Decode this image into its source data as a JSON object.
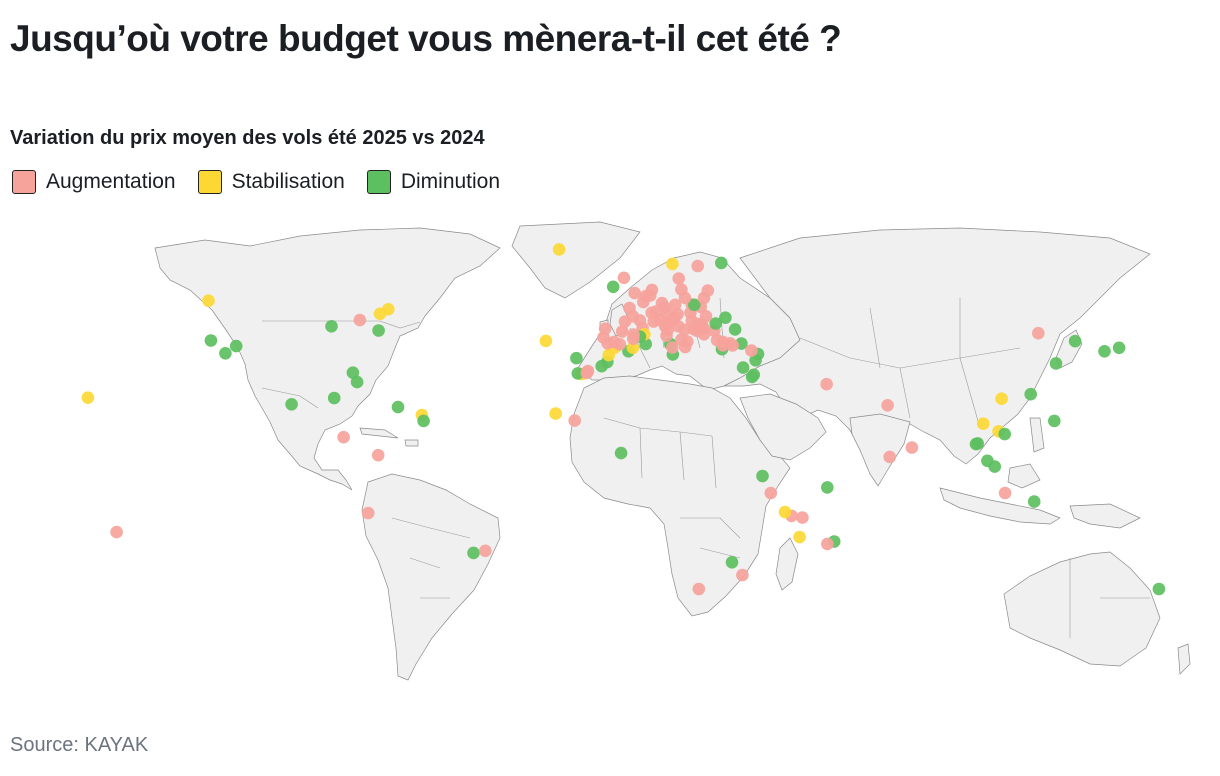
{
  "title": "Jusqu’où votre budget vous mènera-t-il cet été ?",
  "subtitle": "Variation du prix moyen des vols été 2025 vs 2024",
  "legend": [
    {
      "label": "Augmentation",
      "color": "#f6a39c"
    },
    {
      "label": "Stabilisation",
      "color": "#fdd835"
    },
    {
      "label": "Diminution",
      "color": "#5cbf60"
    }
  ],
  "source": "Source: KAYAK",
  "map": {
    "land_color": "#f0f0f0",
    "border_color": "#9a9a9a",
    "destinations": [
      {
        "name": "Honolulu",
        "lat": 21.3,
        "lon": -157.9,
        "change": "Stabilisation"
      },
      {
        "name": "Papeete",
        "lat": -17.5,
        "lon": -149.6,
        "change": "Augmentation"
      },
      {
        "name": "Vancouver",
        "lat": 49.3,
        "lon": -123.1,
        "change": "Stabilisation"
      },
      {
        "name": "San Francisco",
        "lat": 37.8,
        "lon": -122.4,
        "change": "Diminution"
      },
      {
        "name": "Los Angeles",
        "lat": 34.1,
        "lon": -118.2,
        "change": "Diminution"
      },
      {
        "name": "Las Vegas",
        "lat": 36.2,
        "lon": -115.1,
        "change": "Diminution"
      },
      {
        "name": "Chicago",
        "lat": 41.9,
        "lon": -87.6,
        "change": "Diminution"
      },
      {
        "name": "Toronto",
        "lat": 43.7,
        "lon": -79.4,
        "change": "Augmentation"
      },
      {
        "name": "Montréal",
        "lat": 45.5,
        "lon": -73.6,
        "change": "Stabilisation"
      },
      {
        "name": "Québec",
        "lat": 46.8,
        "lon": -71.2,
        "change": "Stabilisation"
      },
      {
        "name": "New York",
        "lat": 40.7,
        "lon": -74.0,
        "change": "Diminution"
      },
      {
        "name": "Orlando",
        "lat": 28.5,
        "lon": -81.4,
        "change": "Diminution"
      },
      {
        "name": "Miami",
        "lat": 25.8,
        "lon": -80.2,
        "change": "Diminution"
      },
      {
        "name": "Mexico",
        "lat": 19.4,
        "lon": -99.1,
        "change": "Diminution"
      },
      {
        "name": "Cancún",
        "lat": 21.2,
        "lon": -86.8,
        "change": "Diminution"
      },
      {
        "name": "Punta Cana",
        "lat": 18.6,
        "lon": -68.4,
        "change": "Diminution"
      },
      {
        "name": "Pointe-à-Pitre",
        "lat": 16.3,
        "lon": -61.5,
        "change": "Stabilisation"
      },
      {
        "name": "Fort-de-France",
        "lat": 14.6,
        "lon": -61.0,
        "change": "Diminution"
      },
      {
        "name": "San José",
        "lat": 9.9,
        "lon": -84.1,
        "change": "Augmentation"
      },
      {
        "name": "Bogotá",
        "lat": 4.7,
        "lon": -74.1,
        "change": "Augmentation"
      },
      {
        "name": "Lima",
        "lat": -12.0,
        "lon": -77.0,
        "change": "Augmentation"
      },
      {
        "name": "São Paulo",
        "lat": -23.5,
        "lon": -46.6,
        "change": "Diminution"
      },
      {
        "name": "Rio de Janeiro",
        "lat": -22.9,
        "lon": -43.2,
        "change": "Augmentation"
      },
      {
        "name": "Reykjavik",
        "lat": 64.1,
        "lon": -21.9,
        "change": "Stabilisation"
      },
      {
        "name": "Ponta Delgada",
        "lat": 37.7,
        "lon": -25.7,
        "change": "Stabilisation"
      },
      {
        "name": "Funchal",
        "lat": 32.7,
        "lon": -16.9,
        "change": "Diminution"
      },
      {
        "name": "Las Palmas",
        "lat": 28.1,
        "lon": -15.4,
        "change": "Stabilisation"
      },
      {
        "name": "Tenerife",
        "lat": 28.3,
        "lon": -16.5,
        "change": "Diminution"
      },
      {
        "name": "Fuerteventura",
        "lat": 28.4,
        "lon": -13.9,
        "change": "Augmentation"
      },
      {
        "name": "Lanzarote",
        "lat": 29.0,
        "lon": -13.6,
        "change": "Augmentation"
      },
      {
        "name": "Sal",
        "lat": 16.7,
        "lon": -22.9,
        "change": "Stabilisation"
      },
      {
        "name": "Dakar",
        "lat": 14.7,
        "lon": -17.4,
        "change": "Augmentation"
      },
      {
        "name": "Abidjan",
        "lat": 5.3,
        "lon": -4.0,
        "change": "Diminution"
      },
      {
        "name": "Marrakech",
        "lat": 31.6,
        "lon": -8.0,
        "change": "Diminution"
      },
      {
        "name": "Agadir",
        "lat": 30.4,
        "lon": -9.6,
        "change": "Diminution"
      },
      {
        "name": "Casablanca",
        "lat": 33.6,
        "lon": -7.6,
        "change": "Stabilisation"
      },
      {
        "name": "Tanger",
        "lat": 35.8,
        "lon": -5.8,
        "change": "Stabilisation"
      },
      {
        "name": "Oujda",
        "lat": 34.7,
        "lon": -1.9,
        "change": "Diminution"
      },
      {
        "name": "Alger",
        "lat": 36.8,
        "lon": 3.1,
        "change": "Diminution"
      },
      {
        "name": "Oran",
        "lat": 35.7,
        "lon": -0.6,
        "change": "Stabilisation"
      },
      {
        "name": "Tunis",
        "lat": 36.8,
        "lon": 10.2,
        "change": "Diminution"
      },
      {
        "name": "Djerba",
        "lat": 33.8,
        "lon": 10.9,
        "change": "Diminution"
      },
      {
        "name": "Monastir",
        "lat": 35.8,
        "lon": 10.8,
        "change": "Augmentation"
      },
      {
        "name": "Le Caire",
        "lat": 30.0,
        "lon": 31.2,
        "change": "Diminution"
      },
      {
        "name": "Hurghada",
        "lat": 27.3,
        "lon": 33.8,
        "change": "Diminution"
      },
      {
        "name": "Sharm el-Sheikh",
        "lat": 27.9,
        "lon": 34.3,
        "change": "Diminution"
      },
      {
        "name": "Tel Aviv",
        "lat": 32.1,
        "lon": 34.8,
        "change": "Diminution"
      },
      {
        "name": "Beyrouth",
        "lat": 33.9,
        "lon": 35.5,
        "change": "Diminution"
      },
      {
        "name": "Antalya",
        "lat": 36.9,
        "lon": 30.7,
        "change": "Diminution"
      },
      {
        "name": "Istanbul",
        "lat": 41.0,
        "lon": 28.9,
        "change": "Diminution"
      },
      {
        "name": "Bodrum",
        "lat": 37.0,
        "lon": 27.4,
        "change": "Augmentation"
      },
      {
        "name": "Larnaca",
        "lat": 34.9,
        "lon": 33.6,
        "change": "Augmentation"
      },
      {
        "name": "Rhodes",
        "lat": 36.4,
        "lon": 28.2,
        "change": "Augmentation"
      },
      {
        "name": "Héraklion",
        "lat": 35.3,
        "lon": 25.1,
        "change": "Diminution"
      },
      {
        "name": "Athènes",
        "lat": 37.9,
        "lon": 23.7,
        "change": "Augmentation"
      },
      {
        "name": "Santorin",
        "lat": 36.4,
        "lon": 25.4,
        "change": "Augmentation"
      },
      {
        "name": "Mykonos",
        "lat": 37.4,
        "lon": 25.3,
        "change": "Augmentation"
      },
      {
        "name": "Corfou",
        "lat": 39.6,
        "lon": 19.9,
        "change": "Augmentation"
      },
      {
        "name": "Thessalonique",
        "lat": 40.6,
        "lon": 22.9,
        "change": "Augmentation"
      },
      {
        "name": "Sofia",
        "lat": 42.7,
        "lon": 23.3,
        "change": "Diminution"
      },
      {
        "name": "Bucarest",
        "lat": 44.4,
        "lon": 26.1,
        "change": "Diminution"
      },
      {
        "name": "Belgrade",
        "lat": 44.8,
        "lon": 20.5,
        "change": "Augmentation"
      },
      {
        "name": "Tirana",
        "lat": 41.3,
        "lon": 19.8,
        "change": "Augmentation"
      },
      {
        "name": "Podgorica",
        "lat": 42.4,
        "lon": 19.3,
        "change": "Augmentation"
      },
      {
        "name": "Dubrovnik",
        "lat": 42.6,
        "lon": 18.1,
        "change": "Augmentation"
      },
      {
        "name": "Split",
        "lat": 43.5,
        "lon": 16.4,
        "change": "Augmentation"
      },
      {
        "name": "Zagreb",
        "lat": 45.8,
        "lon": 16.0,
        "change": "Augmentation"
      },
      {
        "name": "Budapest",
        "lat": 47.5,
        "lon": 19.0,
        "change": "Augmentation"
      },
      {
        "name": "Vienne",
        "lat": 48.2,
        "lon": 16.4,
        "change": "Augmentation"
      },
      {
        "name": "Bratislava",
        "lat": 48.1,
        "lon": 17.1,
        "change": "Diminution"
      },
      {
        "name": "Prague",
        "lat": 50.1,
        "lon": 14.4,
        "change": "Augmentation"
      },
      {
        "name": "Cracovie",
        "lat": 50.1,
        "lon": 19.9,
        "change": "Augmentation"
      },
      {
        "name": "Varsovie",
        "lat": 52.2,
        "lon": 21.0,
        "change": "Augmentation"
      },
      {
        "name": "Berlin",
        "lat": 52.5,
        "lon": 13.4,
        "change": "Augmentation"
      },
      {
        "name": "Copenhague",
        "lat": 55.7,
        "lon": 12.6,
        "change": "Augmentation"
      },
      {
        "name": "Stockholm",
        "lat": 59.3,
        "lon": 18.1,
        "change": "Augmentation"
      },
      {
        "name": "Oslo",
        "lat": 59.9,
        "lon": 10.8,
        "change": "Stabilisation"
      },
      {
        "name": "Helsinki",
        "lat": 60.2,
        "lon": 24.9,
        "change": "Diminution"
      },
      {
        "name": "Dublin",
        "lat": 53.3,
        "lon": -6.3,
        "change": "Diminution"
      },
      {
        "name": "Édimbourg",
        "lat": 55.9,
        "lon": -3.2,
        "change": "Augmentation"
      },
      {
        "name": "Londres",
        "lat": 51.5,
        "lon": -0.1,
        "change": "Augmentation"
      },
      {
        "name": "Amsterdam",
        "lat": 52.4,
        "lon": 4.9,
        "change": "Augmentation"
      },
      {
        "name": "Bruxelles",
        "lat": 50.8,
        "lon": 4.4,
        "change": "Augmentation"
      },
      {
        "name": "Paris",
        "lat": 48.9,
        "lon": 2.4,
        "change": "Augmentation"
      },
      {
        "name": "Lille",
        "lat": 50.6,
        "lon": 3.1,
        "change": "Augmentation"
      },
      {
        "name": "Strasbourg",
        "lat": 48.6,
        "lon": 7.8,
        "change": "Augmentation"
      },
      {
        "name": "Genève",
        "lat": 46.2,
        "lon": 6.1,
        "change": "Augmentation"
      },
      {
        "name": "Zurich",
        "lat": 47.4,
        "lon": 8.5,
        "change": "Augmentation"
      },
      {
        "name": "Munich",
        "lat": 48.1,
        "lon": 11.6,
        "change": "Augmentation"
      },
      {
        "name": "Lyon",
        "lat": 45.8,
        "lon": 4.8,
        "change": "Augmentation"
      },
      {
        "name": "Nantes",
        "lat": 47.2,
        "lon": -1.6,
        "change": "Augmentation"
      },
      {
        "name": "Bordeaux",
        "lat": 44.8,
        "lon": -0.6,
        "change": "Augmentation"
      },
      {
        "name": "Toulouse",
        "lat": 43.6,
        "lon": 1.4,
        "change": "Augmentation"
      },
      {
        "name": "Marseille",
        "lat": 43.3,
        "lon": 5.4,
        "change": "Augmentation"
      },
      {
        "name": "Nice",
        "lat": 43.7,
        "lon": 7.3,
        "change": "Augmentation"
      },
      {
        "name": "Ajaccio",
        "lat": 41.9,
        "lon": 8.7,
        "change": "Augmentation"
      },
      {
        "name": "Bastia",
        "lat": 42.7,
        "lon": 9.4,
        "change": "Augmentation"
      },
      {
        "name": "Milan",
        "lat": 45.5,
        "lon": 9.2,
        "change": "Augmentation"
      },
      {
        "name": "Venise",
        "lat": 45.4,
        "lon": 12.3,
        "change": "Augmentation"
      },
      {
        "name": "Bologne",
        "lat": 44.5,
        "lon": 11.3,
        "change": "Augmentation"
      },
      {
        "name": "Florence",
        "lat": 43.8,
        "lon": 11.2,
        "change": "Augmentation"
      },
      {
        "name": "Rome",
        "lat": 41.9,
        "lon": 12.5,
        "change": "Augmentation"
      },
      {
        "name": "Naples",
        "lat": 40.9,
        "lon": 14.3,
        "change": "Augmentation"
      },
      {
        "name": "Bari",
        "lat": 41.1,
        "lon": 16.9,
        "change": "Augmentation"
      },
      {
        "name": "Brindisi",
        "lat": 40.6,
        "lon": 17.9,
        "change": "Augmentation"
      },
      {
        "name": "Cagliari",
        "lat": 39.2,
        "lon": 9.1,
        "change": "Augmentation"
      },
      {
        "name": "Olbia",
        "lat": 40.9,
        "lon": 9.5,
        "change": "Augmentation"
      },
      {
        "name": "Palerme",
        "lat": 38.1,
        "lon": 13.4,
        "change": "Augmentation"
      },
      {
        "name": "Catane",
        "lat": 37.5,
        "lon": 15.1,
        "change": "Augmentation"
      },
      {
        "name": "Malte",
        "lat": 35.9,
        "lon": 14.5,
        "change": "Augmentation"
      },
      {
        "name": "Barcelone",
        "lat": 41.4,
        "lon": 2.2,
        "change": "Augmentation"
      },
      {
        "name": "Palma",
        "lat": 39.6,
        "lon": 2.7,
        "change": "Stabilisation"
      },
      {
        "name": "Ibiza",
        "lat": 38.9,
        "lon": 1.4,
        "change": "Diminution"
      },
      {
        "name": "Madrid",
        "lat": 40.4,
        "lon": -3.7,
        "change": "Augmentation"
      },
      {
        "name": "Valence",
        "lat": 39.5,
        "lon": -0.4,
        "change": "Augmentation"
      },
      {
        "name": "Alicante",
        "lat": 38.3,
        "lon": -0.5,
        "change": "Augmentation"
      },
      {
        "name": "Bilbao",
        "lat": 43.3,
        "lon": -2.9,
        "change": "Augmentation"
      },
      {
        "name": "Séville",
        "lat": 37.4,
        "lon": -6.0,
        "change": "Augmentation"
      },
      {
        "name": "Malaga",
        "lat": 36.7,
        "lon": -4.4,
        "change": "Augmentation"
      },
      {
        "name": "Porto",
        "lat": 41.2,
        "lon": -8.6,
        "change": "Augmentation"
      },
      {
        "name": "Lisbonne",
        "lat": 38.7,
        "lon": -9.1,
        "change": "Augmentation"
      },
      {
        "name": "Faro",
        "lat": 37.0,
        "lon": -7.9,
        "change": "Augmentation"
      },
      {
        "name": "Dubaï",
        "lat": 25.2,
        "lon": 55.3,
        "change": "Augmentation"
      },
      {
        "name": "Mahé",
        "lat": -4.6,
        "lon": 55.5,
        "change": "Diminution"
      },
      {
        "name": "Nairobi",
        "lat": -1.3,
        "lon": 36.8,
        "change": "Diminution"
      },
      {
        "name": "Zanzibar",
        "lat": -6.2,
        "lon": 39.2,
        "change": "Augmentation"
      },
      {
        "name": "Mayotte",
        "lat": -12.8,
        "lon": 45.2,
        "change": "Augmentation"
      },
      {
        "name": "Moroni",
        "lat": -11.7,
        "lon": 43.3,
        "change": "Stabilisation"
      },
      {
        "name": "Nosy Be",
        "lat": -13.3,
        "lon": 48.3,
        "change": "Augmentation"
      },
      {
        "name": "Antananarivo",
        "lat": -18.9,
        "lon": 47.5,
        "change": "Stabilisation"
      },
      {
        "name": "Maurice",
        "lat": -20.2,
        "lon": 57.5,
        "change": "Diminution"
      },
      {
        "name": "La Réunion",
        "lat": -20.9,
        "lon": 55.5,
        "change": "Augmentation"
      },
      {
        "name": "Johannesburg",
        "lat": -26.2,
        "lon": 28.0,
        "change": "Diminution"
      },
      {
        "name": "Durban",
        "lat": -29.9,
        "lon": 31.0,
        "change": "Augmentation"
      },
      {
        "name": "Le Cap",
        "lat": -33.9,
        "lon": 18.4,
        "change": "Augmentation"
      },
      {
        "name": "Mumbai",
        "lat": 19.1,
        "lon": 72.9,
        "change": "Augmentation"
      },
      {
        "name": "Colombo",
        "lat": 6.9,
        "lon": 79.9,
        "change": "Augmentation"
      },
      {
        "name": "Malé",
        "lat": 4.2,
        "lon": 73.5,
        "change": "Augmentation"
      },
      {
        "name": "Pékin",
        "lat": 39.9,
        "lon": 116.4,
        "change": "Augmentation"
      },
      {
        "name": "Shanghai",
        "lat": 31.2,
        "lon": 121.5,
        "change": "Diminution"
      },
      {
        "name": "Séoul",
        "lat": 37.6,
        "lon": 127.0,
        "change": "Diminution"
      },
      {
        "name": "Tokyo",
        "lat": 35.7,
        "lon": 139.7,
        "change": "Diminution"
      },
      {
        "name": "Osaka",
        "lat": 34.7,
        "lon": 135.5,
        "change": "Diminution"
      },
      {
        "name": "Hong Kong",
        "lat": 22.3,
        "lon": 114.2,
        "change": "Diminution"
      },
      {
        "name": "Hanoï",
        "lat": 21.0,
        "lon": 105.8,
        "change": "Stabilisation"
      },
      {
        "name": "Bangkok",
        "lat": 13.8,
        "lon": 100.5,
        "change": "Stabilisation"
      },
      {
        "name": "Phnom Penh",
        "lat": 11.6,
        "lon": 104.9,
        "change": "Stabilisation"
      },
      {
        "name": "Ho Chi Minh-Ville",
        "lat": 10.8,
        "lon": 106.7,
        "change": "Diminution"
      },
      {
        "name": "Phuket",
        "lat": 7.9,
        "lon": 98.4,
        "change": "Diminution"
      },
      {
        "name": "Krabi",
        "lat": 8.1,
        "lon": 98.9,
        "change": "Diminution"
      },
      {
        "name": "Kuala Lumpur",
        "lat": 3.1,
        "lon": 101.7,
        "change": "Diminution"
      },
      {
        "name": "Singapour",
        "lat": 1.4,
        "lon": 103.8,
        "change": "Diminution"
      },
      {
        "name": "Manille",
        "lat": 14.6,
        "lon": 121.0,
        "change": "Diminution"
      },
      {
        "name": "Bali",
        "lat": -8.7,
        "lon": 115.2,
        "change": "Diminution"
      },
      {
        "name": "Jakarta",
        "lat": -6.2,
        "lon": 106.8,
        "change": "Augmentation"
      },
      {
        "name": "Sydney",
        "lat": -33.9,
        "lon": 151.2,
        "change": "Diminution"
      }
    ]
  }
}
